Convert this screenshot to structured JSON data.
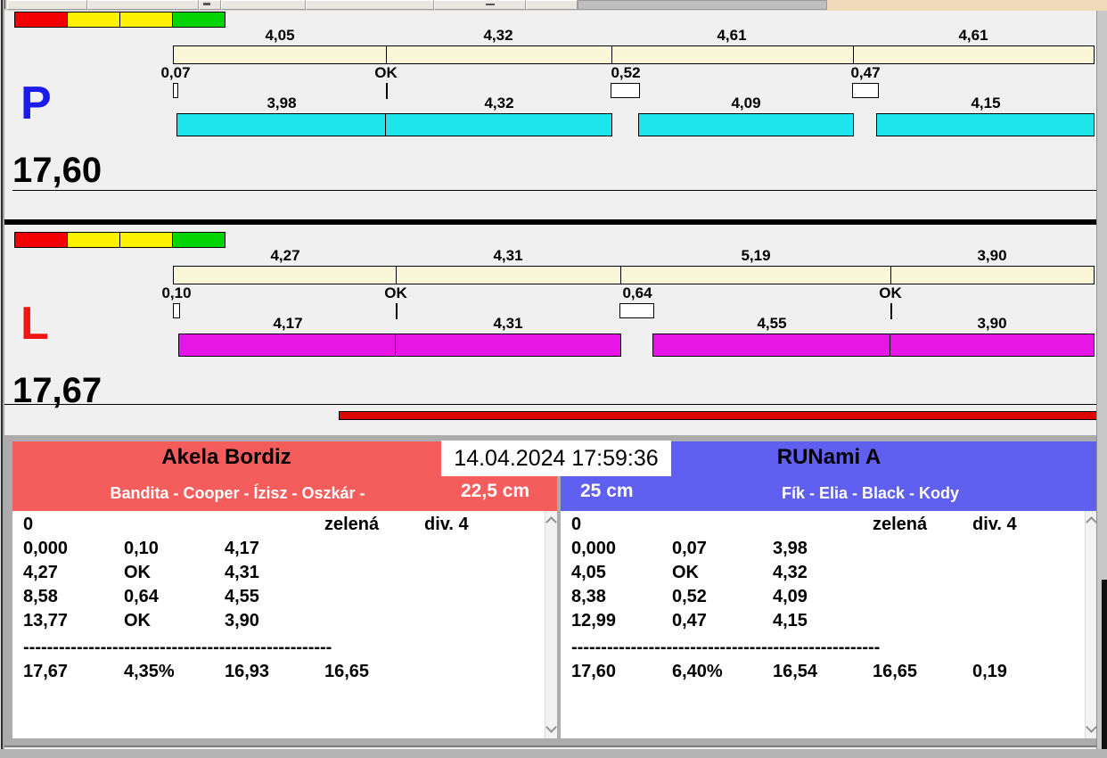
{
  "timestamp": "14.04.2024 17:59:36",
  "lights": [
    "#F20000",
    "#FFF200",
    "#FFF200",
    "#02D502"
  ],
  "colors": {
    "plan_bar": "#FAF7D8",
    "progress": "#DC0202"
  },
  "chart_data": {
    "type": "bar",
    "note": "paired horizontal course bars: planned segment totals (cream) vs measured jumps (colored) with fault gaps",
    "sections": [
      "P total 17,60 m",
      "L total 17,67 m"
    ]
  },
  "sections": [
    {
      "letter": "P",
      "letter_color": "#1C1CE8",
      "bar_color": "#1DE5E9",
      "total_label": "17,60",
      "total_m": 17.6,
      "segments": [
        {
          "total": 4.05,
          "total_label": "4,05",
          "fault": 0.07,
          "fault_label": "0,07",
          "jump": 3.98,
          "jump_label": "3,98"
        },
        {
          "total": 4.32,
          "total_label": "4,32",
          "fault": 0,
          "fault_label": "OK",
          "jump": 4.32,
          "jump_label": "4,32"
        },
        {
          "total": 4.61,
          "total_label": "4,61",
          "fault": 0.52,
          "fault_label": "0,52",
          "jump": 4.09,
          "jump_label": "4,09"
        },
        {
          "total": 4.61,
          "total_label": "4,61",
          "fault": 0.47,
          "fault_label": "0,47",
          "jump": 4.15,
          "jump_label": "4,15"
        }
      ]
    },
    {
      "letter": "L",
      "letter_color": "#EE1515",
      "bar_color": "#E716E7",
      "total_label": "17,67",
      "total_m": 17.67,
      "segments": [
        {
          "total": 4.27,
          "total_label": "4,27",
          "fault": 0.1,
          "fault_label": "0,10",
          "jump": 4.17,
          "jump_label": "4,17"
        },
        {
          "total": 4.31,
          "total_label": "4,31",
          "fault": 0,
          "fault_label": "OK",
          "jump": 4.31,
          "jump_label": "4,31"
        },
        {
          "total": 5.19,
          "total_label": "5,19",
          "fault": 0.64,
          "fault_label": "0,64",
          "jump": 4.55,
          "jump_label": "4,55"
        },
        {
          "total": 3.9,
          "total_label": "3,90",
          "fault": 0,
          "fault_label": "OK",
          "jump": 3.9,
          "jump_label": "3,90"
        }
      ]
    }
  ],
  "panels": {
    "left": {
      "accent": "#F55C5C",
      "title": "Akela Bordiz",
      "dogs": "Bandita - Cooper - Ízisz - Oszkár -",
      "height": "22,5 cm",
      "info_row": [
        "0",
        "",
        "",
        "zelená",
        "div. 4"
      ],
      "rows": [
        [
          "0,000",
          "0,10",
          "4,17"
        ],
        [
          "4,27",
          "OK",
          "4,31"
        ],
        [
          "8,58",
          "0,64",
          "4,55"
        ],
        [
          "13,77",
          "OK",
          "3,90"
        ]
      ],
      "separator": "----------------------------------------------------",
      "totals": [
        "17,67",
        "4,35%",
        "16,93",
        "16,65"
      ]
    },
    "right": {
      "accent": "#5F5FF0",
      "title": "RUNami A",
      "dogs": "Fík - Elia - Black - Kody",
      "height": "25 cm",
      "info_row": [
        "0",
        "",
        "",
        "zelená",
        "div. 4"
      ],
      "rows": [
        [
          "0,000",
          "0,07",
          "3,98"
        ],
        [
          "4,05",
          "OK",
          "4,32"
        ],
        [
          "8,38",
          "0,52",
          "4,09"
        ],
        [
          "12,99",
          "0,47",
          "4,15"
        ]
      ],
      "separator": "----------------------------------------------------",
      "totals": [
        "17,60",
        "6,40%",
        "16,54",
        "16,65",
        "0,19"
      ]
    }
  }
}
